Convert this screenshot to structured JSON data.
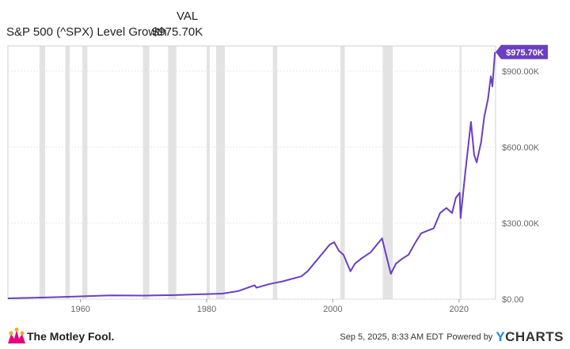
{
  "legend": {
    "header": "VAL",
    "series_name": "S&P 500 (^SPX) Level Growth",
    "series_value": "$975.70K"
  },
  "footer": {
    "logo_text": "The Motley Fool.",
    "timestamp": "Sep 5, 2025, 8:33 AM EDT",
    "powered_by": "Powered by",
    "brand_y": "Y",
    "brand_rest": "CHARTS"
  },
  "colors": {
    "line": "#6a3fc2",
    "recession": "#e3e3e3",
    "grid": "#e6e6e6",
    "axis_text": "#666666",
    "badge": "#6a3fc2"
  },
  "chart_data": {
    "type": "line",
    "title": "S&P 500 (^SPX) Level Growth",
    "xlabel": "",
    "ylabel": "",
    "xlim": [
      1948.5,
      2025.8
    ],
    "ylim": [
      0,
      1000000
    ],
    "x_ticks": [
      1960,
      1980,
      2000,
      2020
    ],
    "y_ticks": [
      {
        "value": 0,
        "label": "$0.00"
      },
      {
        "value": 300000,
        "label": "$300.00K"
      },
      {
        "value": 600000,
        "label": "$600.00K"
      },
      {
        "value": 900000,
        "label": "$900.00K"
      }
    ],
    "last_value_label": "$975.70K",
    "grid": "horizontal",
    "recessions": [
      [
        1953.5,
        1954.4
      ],
      [
        1957.6,
        1958.3
      ],
      [
        1960.3,
        1961.1
      ],
      [
        1969.9,
        1970.9
      ],
      [
        1973.9,
        1975.2
      ],
      [
        1980.0,
        1980.5
      ],
      [
        1981.5,
        1982.9
      ],
      [
        1990.5,
        1991.2
      ],
      [
        2001.2,
        2001.9
      ],
      [
        2007.9,
        2009.5
      ],
      [
        2020.1,
        2020.4
      ]
    ],
    "series": [
      {
        "name": "S&P 500 (^SPX) Level Growth",
        "x": [
          1948.5,
          1955,
          1960,
          1965,
          1970,
          1975,
          1980,
          1982.5,
          1985,
          1987.6,
          1987.9,
          1990,
          1992,
          1995,
          1996,
          1997,
          1998,
          1999,
          1999.5,
          2000.2,
          2001,
          2001.7,
          2002.8,
          2003.5,
          2004.5,
          2006,
          2007.8,
          2008.4,
          2009.2,
          2010,
          2011,
          2012,
          2013,
          2014,
          2015,
          2016,
          2017,
          2018,
          2018.9,
          2019.5,
          2020.1,
          2020.25,
          2021,
          2021.9,
          2022.4,
          2022.8,
          2023.5,
          2024,
          2024.6,
          2025.05,
          2025.3,
          2025.7
        ],
        "y": [
          3000,
          7000,
          11000,
          15000,
          14000,
          16000,
          20000,
          22000,
          32000,
          55000,
          45000,
          60000,
          70000,
          90000,
          110000,
          140000,
          170000,
          200000,
          215000,
          225000,
          190000,
          175000,
          110000,
          140000,
          160000,
          185000,
          240000,
          180000,
          100000,
          140000,
          160000,
          175000,
          220000,
          260000,
          270000,
          280000,
          340000,
          360000,
          340000,
          400000,
          420000,
          320000,
          500000,
          700000,
          570000,
          540000,
          620000,
          720000,
          790000,
          880000,
          840000,
          975700
        ]
      }
    ]
  }
}
